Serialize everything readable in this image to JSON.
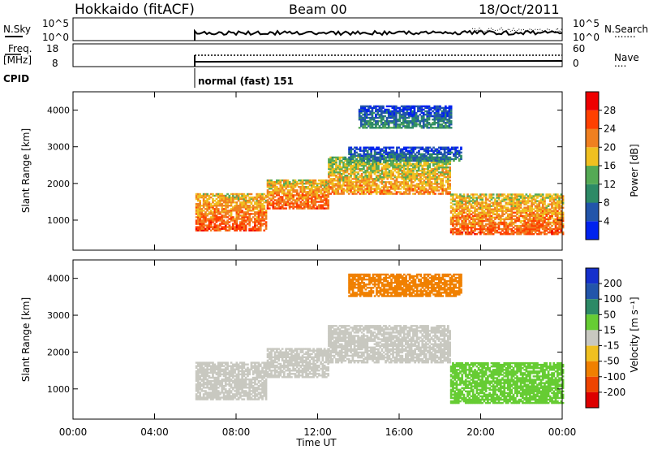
{
  "header": {
    "station": "Hokkaido (fitACF)",
    "beam": "Beam 00",
    "date": "18/Oct/2011"
  },
  "noise_panel": {
    "left_label": "N.Sky",
    "left_ticks": [
      "10^5",
      "10^0"
    ],
    "right_ticks": [
      "10^5",
      "10^0"
    ],
    "right_label": "N.Search",
    "right_dots": "......."
  },
  "freq_panel": {
    "left_label_1": "Freq.",
    "left_label_2": "[MHz]",
    "left_ticks": [
      "18",
      "8"
    ],
    "right_ticks": [
      "60",
      "0"
    ],
    "right_label": "Nave",
    "right_dots": "...."
  },
  "cpid": {
    "label": "CPID",
    "mode_text": "normal (fast) 151"
  },
  "colors": {
    "power_scale": [
      "#0022ee",
      "#2255aa",
      "#2d8a66",
      "#55aa55",
      "#f0c020",
      "#f08020",
      "#ff4000",
      "#ee0000"
    ],
    "velocity_scale": [
      "#dd0000",
      "#ee4400",
      "#f08000",
      "#f0c020",
      "#c8c8c0",
      "#66cc33",
      "#2d8a66",
      "#2255aa",
      "#1530cc"
    ]
  },
  "chart_data": [
    {
      "type": "heatmap",
      "name": "power",
      "xlabel": "",
      "ylabel": "Slant Range [km]",
      "x_ticks": [
        "00:00",
        "04:00",
        "08:00",
        "12:00",
        "16:00",
        "20:00",
        "00:00"
      ],
      "y_ticks": [
        "1000",
        "2000",
        "3000",
        "4000"
      ],
      "xlim_hours": [
        0,
        24
      ],
      "ylim_km": [
        180,
        4500
      ],
      "colorbar": {
        "label": "Power [dB]",
        "ticks": [
          "28",
          "24",
          "20",
          "16",
          "12",
          "8",
          "4"
        ],
        "range": [
          0,
          32
        ]
      },
      "echo_bands": [
        {
          "t0": 6.0,
          "t1": 9.5,
          "r_lo": 700,
          "r_hi": 1700,
          "value": 26
        },
        {
          "t0": 9.5,
          "t1": 12.5,
          "r_lo": 1300,
          "r_hi": 2100,
          "value": 25
        },
        {
          "t0": 12.5,
          "t1": 18.5,
          "r_lo": 1700,
          "r_hi": 2700,
          "value": 22
        },
        {
          "t0": 18.5,
          "t1": 24.0,
          "r_lo": 600,
          "r_hi": 1700,
          "value": 25
        },
        {
          "t0": 13.5,
          "t1": 19.0,
          "r_lo": 2600,
          "r_hi": 3000,
          "value": 10
        },
        {
          "t0": 14.0,
          "t1": 18.5,
          "r_lo": 3500,
          "r_hi": 4100,
          "value": 11
        }
      ]
    },
    {
      "type": "heatmap",
      "name": "velocity",
      "xlabel": "Time UT",
      "ylabel": "Slant Range [km]",
      "x_ticks": [
        "00:00",
        "04:00",
        "08:00",
        "12:00",
        "16:00",
        "20:00",
        "00:00"
      ],
      "y_ticks": [
        "1000",
        "2000",
        "3000",
        "4000"
      ],
      "xlim_hours": [
        0,
        24
      ],
      "ylim_km": [
        180,
        4500
      ],
      "colorbar": {
        "label": "Velocity [m s⁻¹]",
        "ticks": [
          "200",
          "100",
          "50",
          "15",
          "-15",
          "-50",
          "-100",
          "-200"
        ]
      },
      "echo_bands": [
        {
          "t0": 6.0,
          "t1": 9.5,
          "r_lo": 700,
          "r_hi": 1700,
          "value": 0
        },
        {
          "t0": 9.5,
          "t1": 12.5,
          "r_lo": 1300,
          "r_hi": 2100,
          "value": 0
        },
        {
          "t0": 12.5,
          "t1": 18.5,
          "r_lo": 1700,
          "r_hi": 2700,
          "value": 0
        },
        {
          "t0": 18.5,
          "t1": 24.0,
          "r_lo": 600,
          "r_hi": 1700,
          "value": 25
        },
        {
          "t0": 13.5,
          "t1": 19.0,
          "r_lo": 3500,
          "r_hi": 4100,
          "value": -80
        }
      ]
    }
  ]
}
